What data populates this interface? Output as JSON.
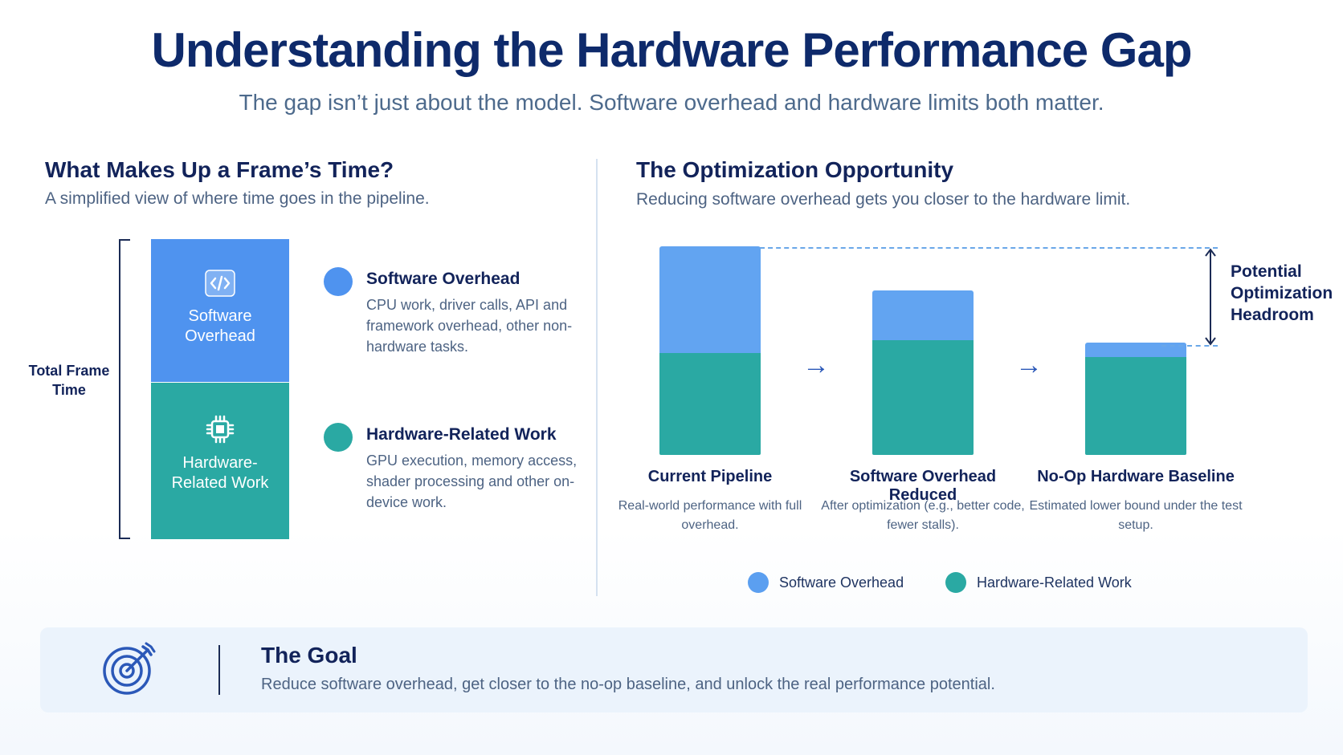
{
  "header": {
    "title": "Understanding the Hardware Performance Gap",
    "subtitle": "The gap isn’t just about the model. Software overhead and hardware limits both matter."
  },
  "left": {
    "title": "What Makes Up a Frame’s Time?",
    "subtitle": "A simplified view of where time goes in the pipeline.",
    "total_label": "Total Frame Time",
    "stack": {
      "software_label": "Software Overhead",
      "hardware_label": "Hardware-Related Work",
      "software_icon": "code-icon",
      "hardware_icon": "chip-icon"
    },
    "items": [
      {
        "title": "Software Overhead",
        "desc": "CPU work, driver calls, API and framework overhead, other non-hardware tasks.",
        "color": "#4f93ef"
      },
      {
        "title": "Hardware-Related Work",
        "desc": "GPU execution, memory access, shader processing and other on-device work.",
        "color": "#2aa9a3"
      }
    ]
  },
  "right": {
    "title": "The Optimization Opportunity",
    "subtitle": "Reducing software overhead gets you closer to the hardware limit.",
    "headroom_label": "Potential Optimization Headroom",
    "legend": [
      {
        "name": "Software Overhead",
        "color": "#5b9ff0"
      },
      {
        "name": "Hardware-Related Work",
        "color": "#2aa9a3"
      }
    ]
  },
  "chart_data": {
    "type": "bar",
    "stacked": true,
    "categories": [
      "Current Pipeline",
      "Software Overhead Reduced",
      "No-Op Hardware Baseline"
    ],
    "descriptions": [
      "Real-world performance with full overhead.",
      "After optimization (e.g., better code, fewer stalls).",
      "Estimated lower bound under the test setup."
    ],
    "series": [
      {
        "name": "Hardware-Related Work",
        "values": [
          49,
          55,
          47
        ]
      },
      {
        "name": "Software Overhead",
        "values": [
          51,
          24,
          7
        ]
      }
    ],
    "ylim": [
      0,
      100
    ]
  },
  "goal": {
    "icon": "target-icon",
    "title": "The Goal",
    "text": "Reduce software overhead, get closer to the no-op baseline, and unlock the real performance potential."
  },
  "colors": {
    "software": "#4f93ef",
    "hardware": "#2aa9a3",
    "title": "#0e2a6b"
  }
}
